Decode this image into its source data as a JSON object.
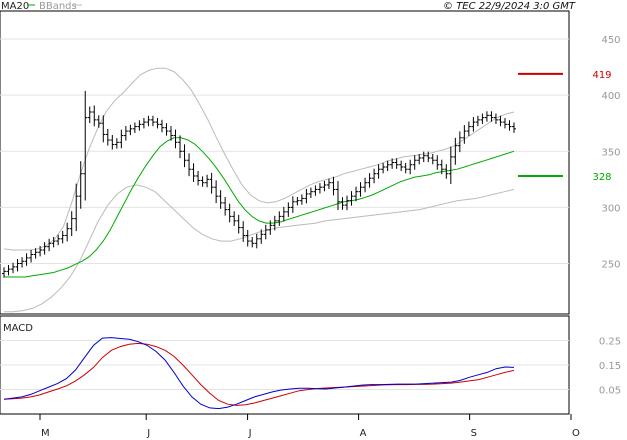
{
  "chart_data": {
    "type": "candlestick-ohlc",
    "credit": "© TEC 22/9/2024 3:0 GMT",
    "legend": [
      {
        "label": "MA20",
        "color": "#00aa00"
      },
      {
        "label": "BBands",
        "color": "#bbbbbb"
      }
    ],
    "price_panel": {
      "ylim": [
        205,
        475
      ],
      "y_ticks": [
        250,
        300,
        350,
        400,
        450
      ],
      "y_tick_labels": [
        "250",
        "300",
        "350",
        "400",
        "450"
      ],
      "resistance": {
        "value": 419,
        "label": "419",
        "color": "#cc0000"
      },
      "support": {
        "value": 328,
        "label": "328",
        "color": "#00aa00"
      }
    },
    "macd_panel": {
      "label": "MACD",
      "ylim": [
        -0.05,
        0.35
      ],
      "y_ticks": [
        0.05,
        0.15,
        0.25
      ],
      "y_tick_labels": [
        "0.05",
        "0.15",
        "0.25"
      ]
    },
    "x_months": [
      {
        "label": "M",
        "day": 0
      },
      {
        "label": "J",
        "day": 22
      },
      {
        "label": "J",
        "day": 43
      },
      {
        "label": "A",
        "day": 66
      },
      {
        "label": "S",
        "day": 89
      },
      {
        "label": "O",
        "day": 110
      }
    ],
    "series_ohlc": {
      "close": [
        243,
        245,
        247,
        250,
        252,
        255,
        258,
        260,
        262,
        265,
        268,
        270,
        272,
        275,
        281,
        290,
        310,
        330,
        380,
        385,
        378,
        375,
        365,
        360,
        356,
        358,
        364,
        368,
        370,
        372,
        374,
        376,
        378,
        376,
        374,
        371,
        368,
        364,
        358,
        350,
        342,
        334,
        328,
        324,
        322,
        325,
        318,
        310,
        304,
        298,
        292,
        288,
        282,
        275,
        270,
        268,
        272,
        276,
        280,
        284,
        288,
        292,
        296,
        300,
        305,
        306,
        308,
        312,
        314,
        316,
        318,
        320,
        322,
        316,
        305,
        302,
        306,
        310,
        314,
        318,
        322,
        326,
        330,
        334,
        336,
        338,
        340,
        338,
        336,
        334,
        338,
        342,
        344,
        346,
        344,
        342,
        338,
        334,
        330,
        345,
        355,
        362,
        368,
        372,
        376,
        378,
        380,
        382,
        380,
        378,
        376,
        374,
        372,
        370
      ],
      "series_ohlc_note_removed": true
    },
    "ma20": [
      238,
      238,
      238,
      238,
      239,
      240,
      241,
      242,
      244,
      246,
      249,
      252,
      256,
      262,
      270,
      280,
      292,
      304,
      316,
      327,
      337,
      346,
      354,
      359,
      362,
      362,
      360,
      356,
      350,
      343,
      335,
      326,
      316,
      306,
      298,
      292,
      288,
      286,
      286,
      287,
      289,
      291,
      293,
      295,
      297,
      299,
      301,
      303,
      305,
      306,
      307,
      309,
      311,
      314,
      317,
      320,
      323,
      325,
      327,
      328,
      329,
      331,
      332,
      333,
      334,
      336,
      338,
      340,
      342,
      344,
      346,
      348,
      350
    ],
    "bb_upper": [
      263,
      262,
      262,
      262,
      263,
      266,
      272,
      283,
      305,
      330,
      352,
      370,
      385,
      395,
      402,
      410,
      418,
      422,
      424,
      424,
      421,
      414,
      405,
      392,
      378,
      362,
      347,
      333,
      320,
      311,
      306,
      304,
      305,
      308,
      312,
      316,
      320,
      323,
      325,
      327,
      330,
      332,
      334,
      336,
      338,
      341,
      343,
      345,
      346,
      347,
      348,
      350,
      352,
      355,
      360,
      365,
      370,
      375,
      380,
      383,
      385
    ],
    "bb_lower": [
      207,
      207,
      208,
      210,
      214,
      220,
      228,
      238,
      252,
      270,
      288,
      302,
      312,
      318,
      320,
      318,
      314,
      306,
      298,
      290,
      282,
      276,
      272,
      270,
      270,
      272,
      275,
      278,
      280,
      282,
      283,
      284,
      285,
      286,
      288,
      289,
      290,
      291,
      292,
      293,
      294,
      295,
      296,
      297,
      298,
      300,
      302,
      304,
      306,
      307,
      308,
      310,
      312,
      314,
      316
    ],
    "macd": [
      0.01,
      0.015,
      0.02,
      0.03,
      0.045,
      0.06,
      0.075,
      0.095,
      0.13,
      0.18,
      0.23,
      0.26,
      0.262,
      0.258,
      0.255,
      0.245,
      0.23,
      0.205,
      0.17,
      0.12,
      0.065,
      0.02,
      -0.01,
      -0.025,
      -0.028,
      -0.022,
      -0.01,
      0.005,
      0.02,
      0.03,
      0.04,
      0.048,
      0.052,
      0.055,
      0.055,
      0.053,
      0.052,
      0.056,
      0.06,
      0.064,
      0.068,
      0.07,
      0.07,
      0.071,
      0.072,
      0.072,
      0.072,
      0.074,
      0.076,
      0.078,
      0.08,
      0.087,
      0.1,
      0.11,
      0.12,
      0.135,
      0.142,
      0.14
    ],
    "signal": [
      0.01,
      0.012,
      0.015,
      0.02,
      0.028,
      0.04,
      0.052,
      0.065,
      0.085,
      0.11,
      0.14,
      0.18,
      0.21,
      0.225,
      0.235,
      0.238,
      0.235,
      0.225,
      0.21,
      0.185,
      0.15,
      0.11,
      0.07,
      0.035,
      0.005,
      -0.01,
      -0.015,
      -0.012,
      -0.005,
      0.005,
      0.015,
      0.025,
      0.035,
      0.045,
      0.05,
      0.054,
      0.056,
      0.058,
      0.06,
      0.062,
      0.064,
      0.066,
      0.068,
      0.069,
      0.07,
      0.07,
      0.071,
      0.071,
      0.072,
      0.074,
      0.076,
      0.08,
      0.085,
      0.09,
      0.1,
      0.11,
      0.12,
      0.128
    ]
  }
}
